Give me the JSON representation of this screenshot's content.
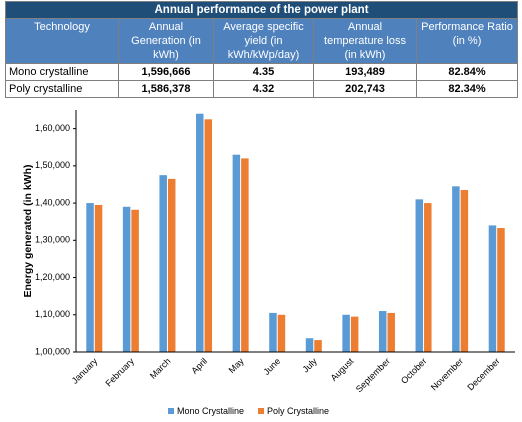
{
  "table": {
    "title": "Annual performance of the power plant",
    "columns": [
      "Technology",
      "Annual Generation (in kWh)",
      "Average specific yield (in kWh/kWp/day)",
      "Annual temperature loss (in kWh)",
      "Performance Ratio (in %)"
    ],
    "rows": [
      [
        "Mono crystalline",
        "1,596,666",
        "4.35",
        "193,489",
        "82.84%"
      ],
      [
        "Poly crystalline",
        "1,586,378",
        "4.32",
        "202,743",
        "82.34%"
      ]
    ]
  },
  "chart_data": {
    "type": "bar",
    "y_label": "Energy generated (in kWh)",
    "categories": [
      "January",
      "February",
      "March",
      "April",
      "May",
      "June",
      "July",
      "August",
      "September",
      "October",
      "November",
      "December"
    ],
    "series": [
      {
        "name": "Mono Crystalline",
        "color": "#5b9bd5",
        "values": [
          140000,
          139000,
          147500,
          164000,
          153000,
          110500,
          103700,
          110000,
          111000,
          141000,
          144500,
          134000
        ]
      },
      {
        "name": "Poly Crystalline",
        "color": "#ed7d31",
        "values": [
          139500,
          138200,
          146500,
          162500,
          152000,
          110000,
          103200,
          109500,
          110500,
          140000,
          143500,
          133300
        ]
      }
    ],
    "ylim": [
      100000,
      165000
    ],
    "yticks": [
      {
        "value": 100000,
        "label": "1,00,000"
      },
      {
        "value": 110000,
        "label": "1,10,000"
      },
      {
        "value": 120000,
        "label": "1,20,000"
      },
      {
        "value": 130000,
        "label": "1,30,000"
      },
      {
        "value": 140000,
        "label": "1,40,000"
      },
      {
        "value": 150000,
        "label": "1,50,000"
      },
      {
        "value": 160000,
        "label": "1,60,000"
      }
    ],
    "grid": false,
    "legend": "bottom"
  }
}
